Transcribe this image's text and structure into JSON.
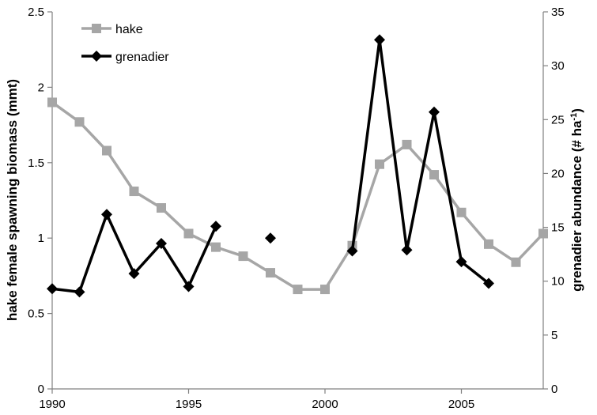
{
  "chart_data": {
    "type": "line",
    "title": "",
    "xlabel": "",
    "ylabel_left": "hake female spawning biomass (mmt)",
    "ylabel_right": "grenadier abundance (# ha",
    "ylabel_right_sup": "-1",
    "ylabel_right_close": ")",
    "xlim": [
      1990,
      2008
    ],
    "ylim_left": [
      0,
      2.5
    ],
    "ylim_right": [
      0,
      35
    ],
    "x_ticks": [
      1990,
      1995,
      2000,
      2005
    ],
    "x_tick_labels": [
      "1990",
      "1995",
      "2000",
      "2005"
    ],
    "y_left_ticks": [
      0,
      0.5,
      1,
      1.5,
      2,
      2.5
    ],
    "y_left_tick_labels": [
      "0",
      "0.5",
      "1",
      "1.5",
      "2",
      "2.5"
    ],
    "y_right_ticks": [
      0,
      5,
      10,
      15,
      20,
      25,
      30,
      35
    ],
    "y_right_tick_labels": [
      "0",
      "5",
      "10",
      "15",
      "20",
      "25",
      "30",
      "35"
    ],
    "grid": false,
    "legend_position": "top-left",
    "series": [
      {
        "name": "hake",
        "axis": "left",
        "color": "#a6a6a6",
        "marker": "square",
        "x": [
          1990,
          1991,
          1992,
          1993,
          1994,
          1995,
          1996,
          1997,
          1998,
          1999,
          2000,
          2001,
          2002,
          2003,
          2004,
          2005,
          2006,
          2007,
          2008
        ],
        "y": [
          1.9,
          1.77,
          1.58,
          1.31,
          1.2,
          1.03,
          0.94,
          0.88,
          0.77,
          0.66,
          0.66,
          0.95,
          1.49,
          1.62,
          1.42,
          1.17,
          0.96,
          0.84,
          1.03
        ]
      },
      {
        "name": "grenadier",
        "axis": "right",
        "color": "#000000",
        "marker": "diamond",
        "x": [
          1990,
          1991,
          1992,
          1993,
          1994,
          1995,
          1996,
          1998,
          2001,
          2002,
          2003,
          2004,
          2005,
          2006
        ],
        "y": [
          9.3,
          9.0,
          16.2,
          10.7,
          13.5,
          9.5,
          15.1,
          14.0,
          12.8,
          32.4,
          12.9,
          25.7,
          11.8,
          9.8
        ],
        "segments": [
          [
            1990,
            1991,
            1992,
            1993,
            1994,
            1995,
            1996
          ],
          [
            1998
          ],
          [
            2001,
            2002,
            2003,
            2004,
            2005,
            2006
          ]
        ]
      }
    ]
  }
}
